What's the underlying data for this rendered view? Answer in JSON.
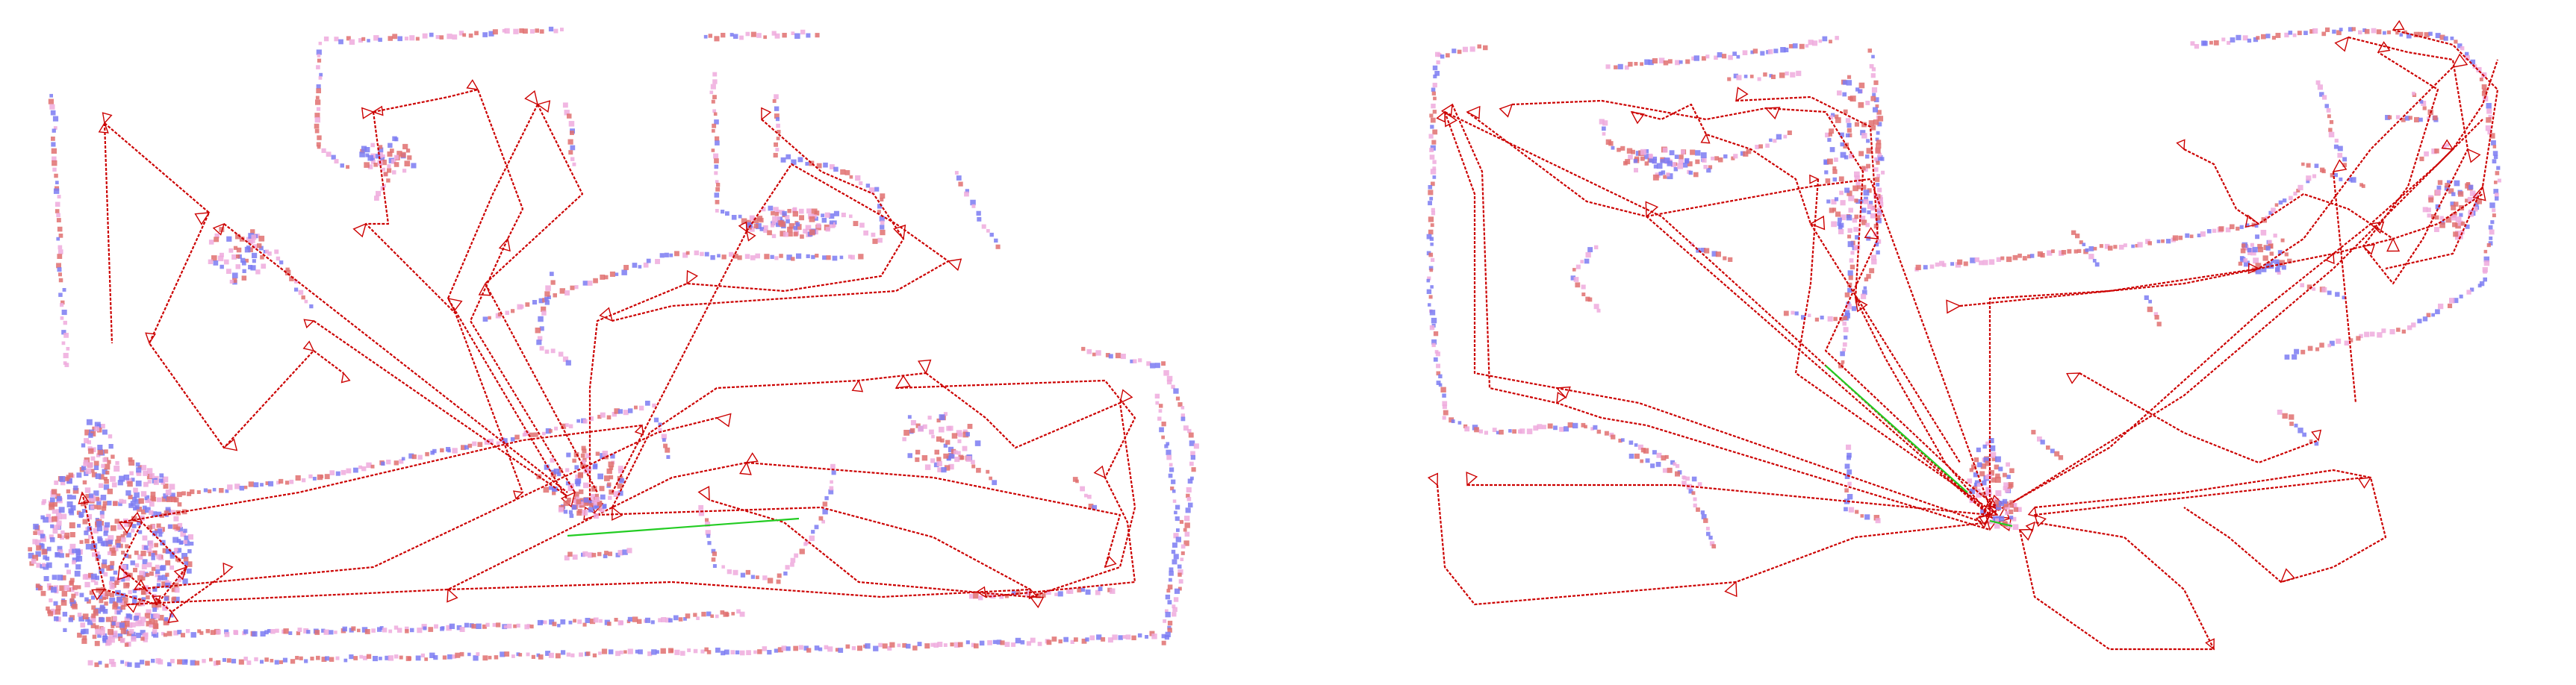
{
  "figure": {
    "panel_count": 2,
    "panels": [
      {
        "id": "left",
        "landmarks": "walls",
        "trajectory": "poses-with-frustums",
        "loop_closure": "green"
      },
      {
        "id": "right",
        "landmarks": "walls",
        "trajectory": "poses-with-frustums",
        "loop_closure": "green"
      }
    ]
  },
  "colors": {
    "background": "#ffffff",
    "landmark_blue": "#7b7bf2",
    "landmark_pink": "#eeaadd",
    "landmark_red": "#e07070",
    "trajectory": "#cc0000",
    "loop_closure": "#22cc22"
  }
}
